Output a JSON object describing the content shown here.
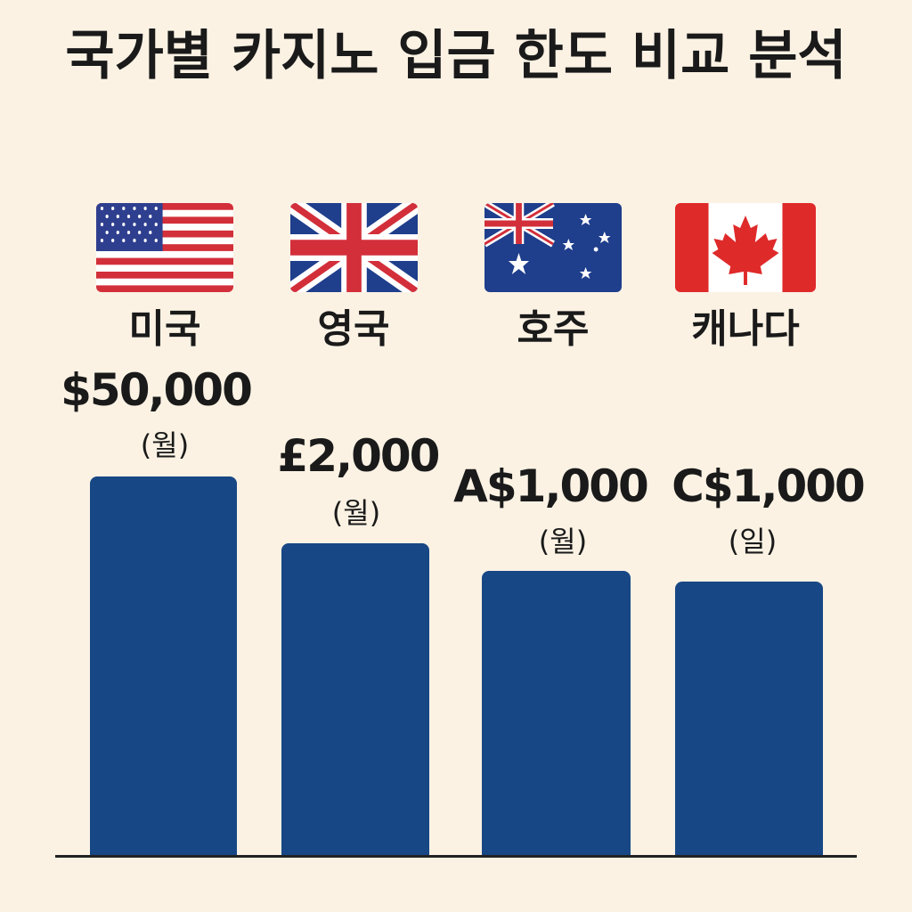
{
  "chart_data": {
    "type": "bar",
    "title": "국가별 카지노 입금 한도 비교 분석",
    "categories": [
      "미국",
      "영국",
      "호주",
      "캐나다"
    ],
    "values": [
      50000,
      2000,
      1000,
      1000
    ],
    "value_labels": [
      "$50,000",
      "£2,000",
      "A$1,000",
      "C$1,000"
    ],
    "period_labels": [
      "(월)",
      "(월)",
      "(월)",
      "(일)"
    ],
    "flags": [
      "us-flag-icon",
      "uk-flag-icon",
      "australia-flag-icon",
      "canada-flag-icon"
    ],
    "bar_color": "#184785",
    "background": "#fbf2e4"
  }
}
